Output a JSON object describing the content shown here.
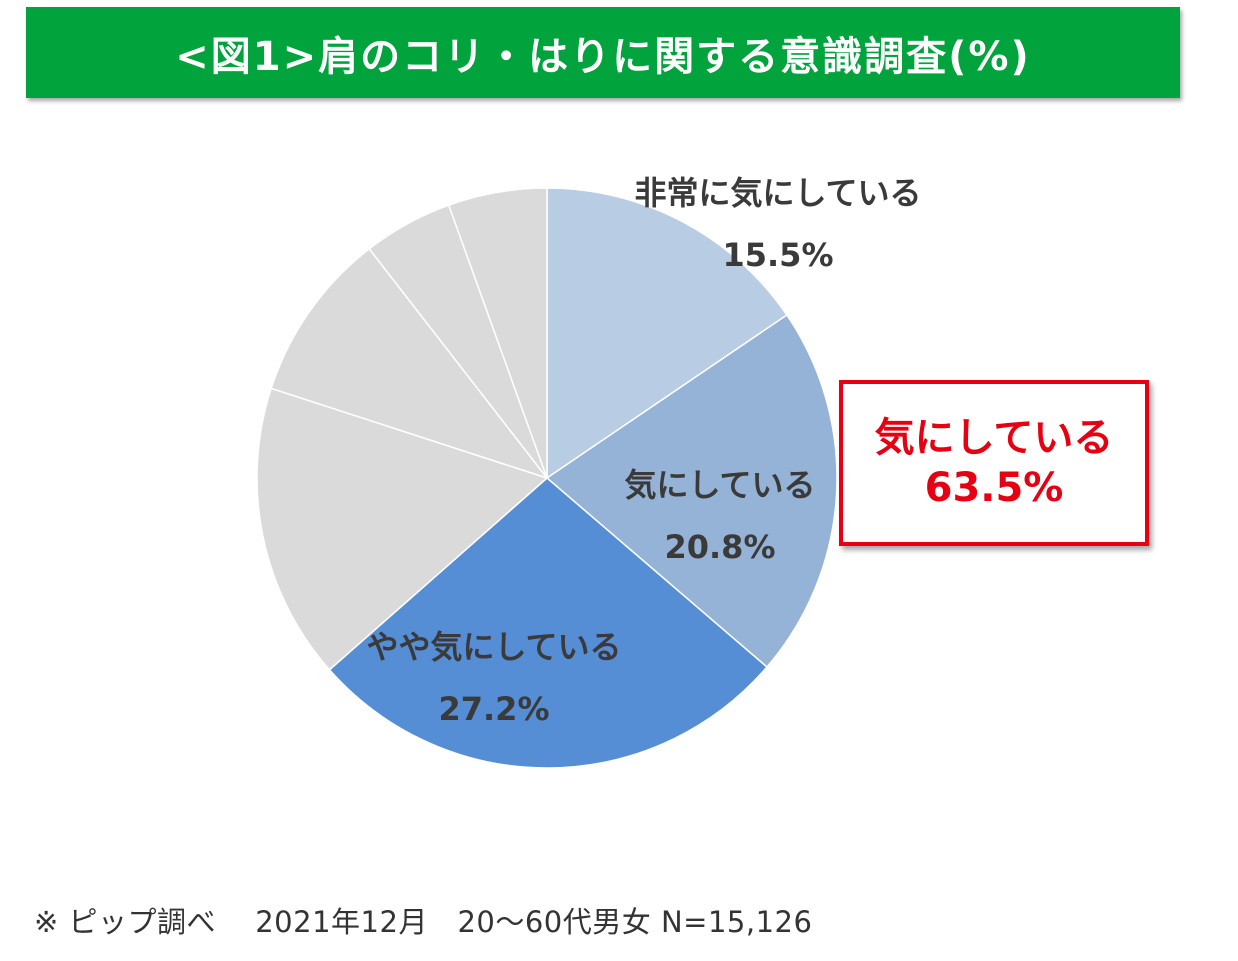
{
  "title": "<図1>肩のコリ・はりに関する意識調査(%)",
  "callout": {
    "label": "気にしている",
    "value": "63.5%"
  },
  "footnote": "※ ピップ調べ　 2021年12月　20～60代男女 N=15,126",
  "colors": {
    "title_bg": "#00a33c",
    "accent_red": "#e60012",
    "slice_1": "#b8cce4",
    "slice_2": "#95b3d7",
    "slice_3": "#558ed5",
    "other": "#dadada"
  },
  "chart_data": {
    "type": "pie",
    "start": "12 o'clock, clockwise",
    "slices": [
      {
        "label": "非常に気にしている",
        "value": 15.5,
        "display": "15.5%",
        "color": "#b8cce4"
      },
      {
        "label": "気にしている",
        "value": 20.8,
        "display": "20.8%",
        "color": "#95b3d7"
      },
      {
        "label": "やや気にしている",
        "value": 27.2,
        "display": "27.2%",
        "color": "#558ed5"
      },
      {
        "label": "",
        "value": 16.5,
        "display": "",
        "color": "#dadada"
      },
      {
        "label": "",
        "value": 9.5,
        "display": "",
        "color": "#dadada"
      },
      {
        "label": "",
        "value": 5.0,
        "display": "",
        "color": "#dadada"
      },
      {
        "label": "",
        "value": 5.5,
        "display": "",
        "color": "#dadada"
      }
    ]
  }
}
